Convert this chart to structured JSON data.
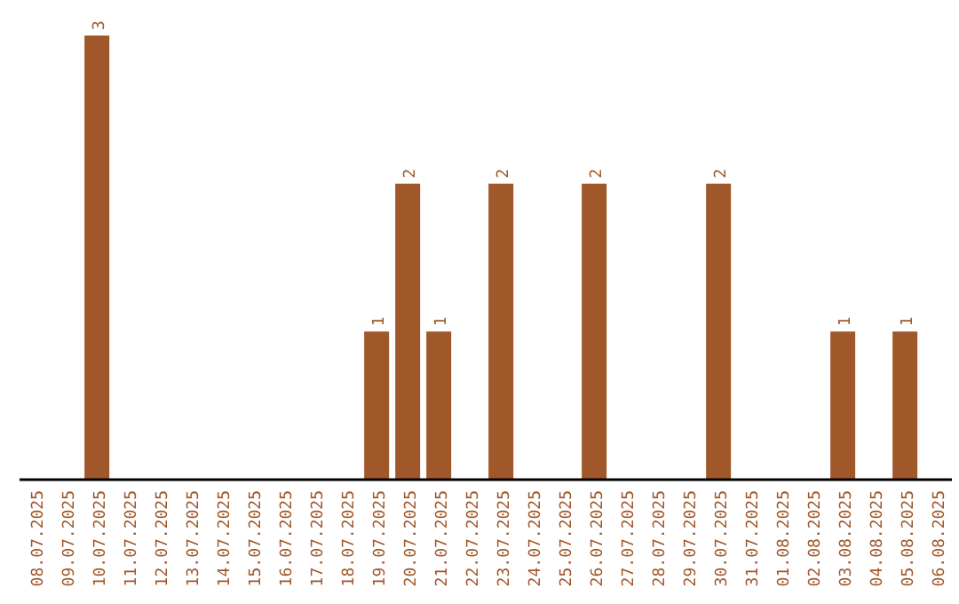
{
  "chart_data": {
    "type": "bar",
    "categories": [
      "08.07.2025",
      "09.07.2025",
      "10.07.2025",
      "11.07.2025",
      "12.07.2025",
      "13.07.2025",
      "14.07.2025",
      "15.07.2025",
      "16.07.2025",
      "17.07.2025",
      "18.07.2025",
      "19.07.2025",
      "20.07.2025",
      "21.07.2025",
      "22.07.2025",
      "23.07.2025",
      "24.07.2025",
      "25.07.2025",
      "26.07.2025",
      "27.07.2025",
      "28.07.2025",
      "29.07.2025",
      "30.07.2025",
      "31.07.2025",
      "01.08.2025",
      "02.08.2025",
      "03.08.2025",
      "04.08.2025",
      "05.08.2025",
      "06.08.2025"
    ],
    "values": [
      0,
      0,
      3,
      0,
      0,
      0,
      0,
      0,
      0,
      0,
      0,
      1,
      2,
      1,
      0,
      2,
      0,
      0,
      2,
      0,
      0,
      0,
      2,
      0,
      0,
      0,
      1,
      0,
      1,
      0
    ],
    "value_labels": [
      null,
      null,
      "3",
      null,
      null,
      null,
      null,
      null,
      null,
      null,
      null,
      "1",
      "2",
      "1",
      null,
      "2",
      null,
      null,
      "2",
      null,
      null,
      null,
      "2",
      null,
      null,
      null,
      "1",
      null,
      "1",
      null
    ],
    "color": "#a0572a",
    "grid": false,
    "legend": false
  }
}
